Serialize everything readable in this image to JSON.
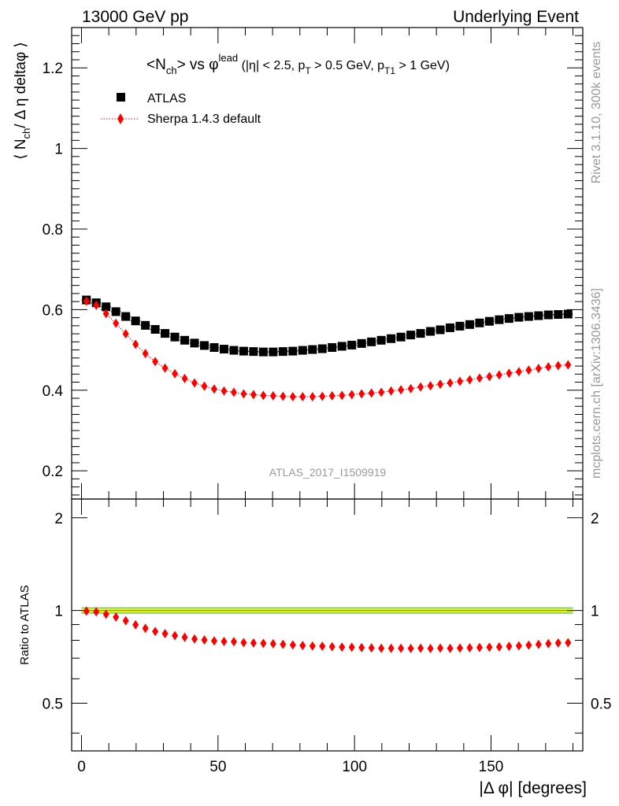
{
  "header": {
    "left": "13000 GeV pp",
    "right": "Underlying Event"
  },
  "side": {
    "rivet": "Rivet 3.1.10,  300k events",
    "mcplots": "mcplots.cern.ch [arXiv:1306.3436]"
  },
  "plot_title": {
    "main_a": "<N",
    "main_sub": "ch",
    "main_b": "> vs φ",
    "main_sup": "lead",
    "cond_a": " (|η| < 2.5, p",
    "cond_sub1": "T",
    "cond_b": " > 0.5 GeV, p",
    "cond_sub2": "T1",
    "cond_c": " > 1 GeV)"
  },
  "watermark": "ATLAS_2017_I1509919",
  "legend": {
    "atlas": "ATLAS",
    "sherpa": "Sherpa 1.4.3 default"
  },
  "colors": {
    "atlas": "#000000",
    "sherpa": "#ff0000",
    "band_inner": "#ffff00",
    "band_outer": "#8fd66f"
  },
  "chart_data": {
    "type": "scatter",
    "x_label": "|Δ φ| [degrees]",
    "y_label_main": "⟨ N",
    "y_label_sub": "ch",
    "y_label_rest": "/ Δ η deltaφ ⟩",
    "ratio_label": "Ratio to ATLAS",
    "xlim": [
      -3.6,
      183.6
    ],
    "ylim_main": [
      0.13,
      1.3
    ],
    "ylim_ratio": [
      0.35,
      2.3
    ],
    "ratio_scale": "log",
    "x_ticks": [
      "0",
      "50",
      "100",
      "150"
    ],
    "y_ticks_main": [
      "0.2",
      "0.4",
      "0.6",
      "0.8",
      "1",
      "1.2"
    ],
    "y_ticks_ratio": [
      "0.5",
      "1",
      "2"
    ],
    "x": [
      1.8,
      5.4,
      9.0,
      12.6,
      16.2,
      19.8,
      23.4,
      27.0,
      30.6,
      34.2,
      37.8,
      41.4,
      45.0,
      48.6,
      52.2,
      55.8,
      59.4,
      63.0,
      66.6,
      70.2,
      73.8,
      77.4,
      81.0,
      84.6,
      88.2,
      91.8,
      95.4,
      99.0,
      102.6,
      106.2,
      109.8,
      113.4,
      117.0,
      120.6,
      124.2,
      127.8,
      131.4,
      135.0,
      138.6,
      142.2,
      145.8,
      149.4,
      153.0,
      156.6,
      160.2,
      163.8,
      167.4,
      171.0,
      174.6,
      178.2
    ],
    "series": [
      {
        "name": "ATLAS",
        "values": [
          0.624,
          0.617,
          0.607,
          0.595,
          0.583,
          0.572,
          0.561,
          0.551,
          0.541,
          0.532,
          0.524,
          0.517,
          0.511,
          0.506,
          0.502,
          0.499,
          0.497,
          0.496,
          0.495,
          0.495,
          0.496,
          0.497,
          0.499,
          0.501,
          0.503,
          0.506,
          0.509,
          0.512,
          0.516,
          0.52,
          0.524,
          0.528,
          0.532,
          0.537,
          0.541,
          0.546,
          0.55,
          0.555,
          0.559,
          0.563,
          0.567,
          0.571,
          0.575,
          0.578,
          0.581,
          0.583,
          0.585,
          0.587,
          0.588,
          0.589
        ]
      },
      {
        "name": "Sherpa 1.4.3 default",
        "values": [
          0.621,
          0.611,
          0.59,
          0.566,
          0.54,
          0.514,
          0.491,
          0.471,
          0.455,
          0.441,
          0.429,
          0.418,
          0.41,
          0.403,
          0.398,
          0.395,
          0.391,
          0.389,
          0.387,
          0.386,
          0.385,
          0.384,
          0.384,
          0.384,
          0.385,
          0.386,
          0.387,
          0.389,
          0.391,
          0.393,
          0.395,
          0.398,
          0.401,
          0.404,
          0.408,
          0.411,
          0.415,
          0.418,
          0.422,
          0.426,
          0.43,
          0.434,
          0.438,
          0.442,
          0.446,
          0.45,
          0.454,
          0.458,
          0.461,
          0.463
        ]
      }
    ]
  }
}
